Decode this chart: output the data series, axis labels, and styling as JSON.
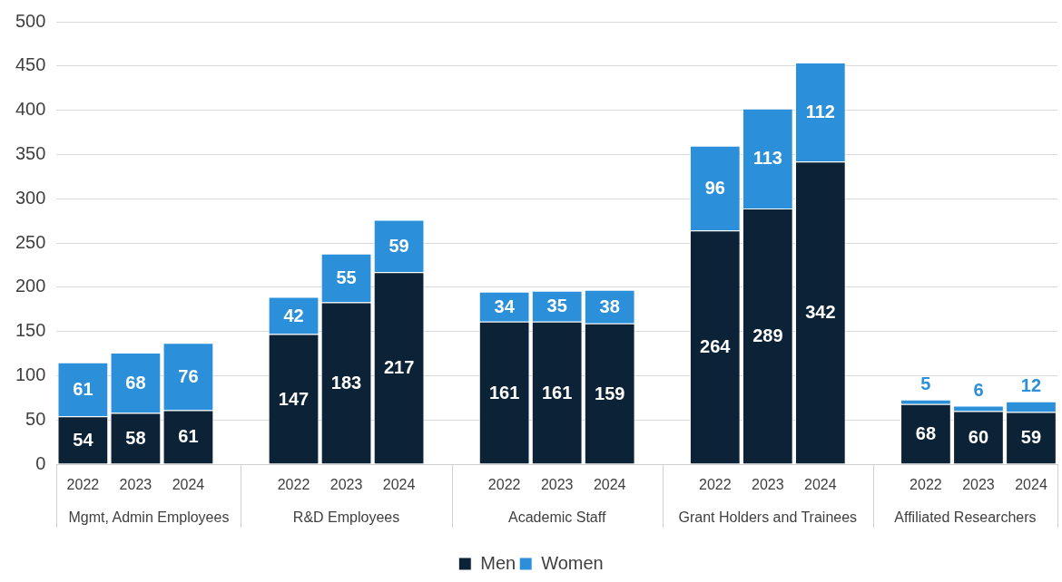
{
  "chart_data": {
    "type": "bar",
    "stacked": true,
    "categories": [
      "2022",
      "2023",
      "2024",
      "2022",
      "2023",
      "2024",
      "2022",
      "2023",
      "2024",
      "2022",
      "2023",
      "2024",
      "2022",
      "2023",
      "2024"
    ],
    "annotations": [
      "Mgmt, Admin Employees",
      "R&D Employees",
      "Academic Staff",
      "Grant Holders and Trainees",
      "Affiliated Researchers"
    ],
    "series": [
      {
        "name": "Men",
        "color": "#0c2236",
        "values": [
          54,
          58,
          61,
          147,
          183,
          217,
          161,
          161,
          159,
          264,
          289,
          342,
          68,
          60,
          59
        ]
      },
      {
        "name": "Women",
        "color": "#2b8fd9",
        "values": [
          61,
          68,
          76,
          42,
          55,
          59,
          34,
          35,
          38,
          96,
          113,
          112,
          5,
          6,
          12
        ]
      }
    ],
    "ylim": [
      0,
      500
    ],
    "yticks": [
      0,
      50,
      100,
      150,
      200,
      250,
      300,
      350,
      400,
      450,
      500
    ],
    "grid": "y",
    "legend": "bottom",
    "data_labels": true
  }
}
